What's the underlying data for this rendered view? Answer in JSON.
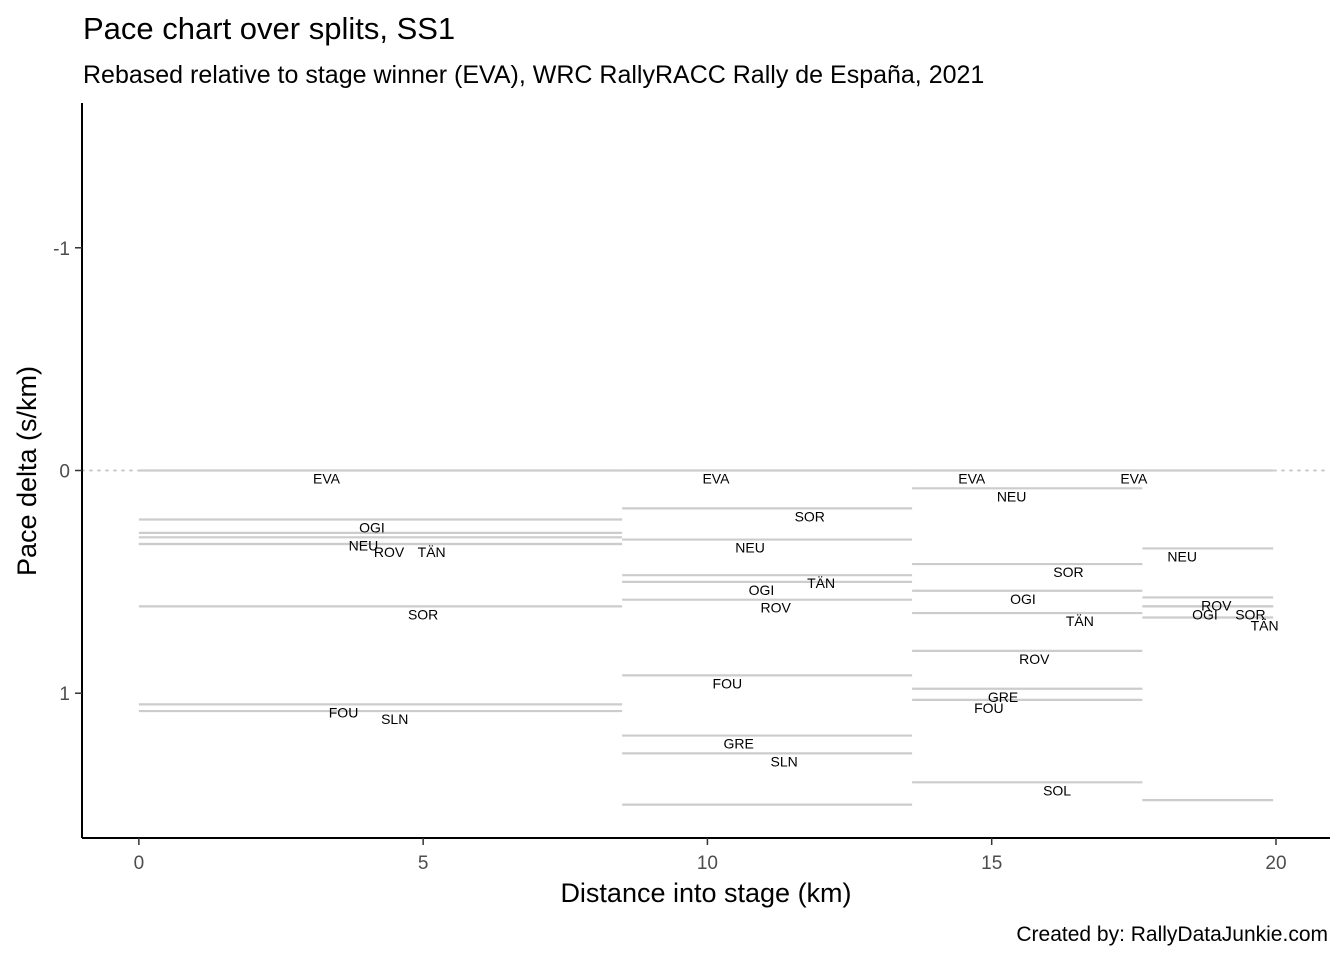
{
  "chart_data": {
    "type": "line",
    "title": "Pace chart over splits, SS1",
    "subtitle": "Rebased relative to stage winner (EVA), WRC RallyRACC Rally de España, 2021",
    "xlabel": "Distance into stage (km)",
    "ylabel": "Pace delta (s/km)",
    "caption": "Created by: RallyDataJunkie.com",
    "xlim": [
      -1,
      20.95
    ],
    "ylim": [
      -1.65,
      1.65
    ],
    "y_reversed": true,
    "x_ticks": [
      0,
      5,
      10,
      15,
      20
    ],
    "y_ticks": [
      -1,
      0,
      1
    ],
    "x_tick_labels": [
      "0",
      "5",
      "10",
      "15",
      "20"
    ],
    "y_tick_labels": [
      "-1",
      "0",
      "1"
    ],
    "reference_line": {
      "y": 0,
      "style": "dotted",
      "color": "#cccccc"
    },
    "grid": false,
    "colors": {
      "segment": "#cccccc",
      "axis": "#000000",
      "tick_label": "#4d4d4d"
    },
    "splits": [
      {
        "x_start": 0,
        "x_end": 8.5,
        "segments": [
          {
            "name": "EVA",
            "pace": 0.0,
            "label_x": 3.3
          },
          {
            "name": "OGI",
            "pace": 0.22,
            "label_x": 4.1
          },
          {
            "name": "",
            "pace": 0.28
          },
          {
            "name": "NEU",
            "pace": 0.3,
            "label_x": 3.95
          },
          {
            "name": "TÄN",
            "pace": 0.33,
            "label_x": 5.15
          },
          {
            "name": "ROV",
            "pace": 0.33,
            "label_x": 4.4
          },
          {
            "name": "SOR",
            "pace": 0.61,
            "label_x": 5.0
          },
          {
            "name": "FOU",
            "pace": 1.05,
            "label_x": 3.6
          },
          {
            "name": "SLN",
            "pace": 1.08,
            "label_x": 4.5
          }
        ]
      },
      {
        "x_start": 8.5,
        "x_end": 13.6,
        "segments": [
          {
            "name": "EVA",
            "pace": 0.0,
            "label_x": 10.15
          },
          {
            "name": "SOR",
            "pace": 0.17,
            "label_x": 11.8
          },
          {
            "name": "NEU",
            "pace": 0.31,
            "label_x": 10.75
          },
          {
            "name": "TÄN",
            "pace": 0.47,
            "label_x": 12.0
          },
          {
            "name": "OGI",
            "pace": 0.5,
            "label_x": 10.95
          },
          {
            "name": "ROV",
            "pace": 0.58,
            "label_x": 11.2
          },
          {
            "name": "FOU",
            "pace": 0.92,
            "label_x": 10.35
          },
          {
            "name": "GRE",
            "pace": 1.19,
            "label_x": 10.55
          },
          {
            "name": "SLN",
            "pace": 1.27,
            "label_x": 11.35
          },
          {
            "name": "",
            "pace": 1.5
          }
        ]
      },
      {
        "x_start": 13.6,
        "x_end": 17.65,
        "segments": [
          {
            "name": "EVA",
            "pace": 0.0,
            "label_x": 14.65
          },
          {
            "name": "NEU",
            "pace": 0.08,
            "label_x": 15.35
          },
          {
            "name": "SOR",
            "pace": 0.42,
            "label_x": 16.35
          },
          {
            "name": "OGI",
            "pace": 0.54,
            "label_x": 15.55
          },
          {
            "name": "TÄN",
            "pace": 0.64,
            "label_x": 16.55
          },
          {
            "name": "ROV",
            "pace": 0.81,
            "label_x": 15.75
          },
          {
            "name": "GRE",
            "pace": 0.98,
            "label_x": 15.2
          },
          {
            "name": "FOU",
            "pace": 1.03,
            "label_x": 14.95
          },
          {
            "name": "SOL",
            "pace": 1.4,
            "label_x": 16.15
          }
        ]
      },
      {
        "x_start": 17.65,
        "x_end": 19.95,
        "segments": [
          {
            "name": "EVA",
            "pace": 0.0,
            "label_x": 17.5
          },
          {
            "name": "NEU",
            "pace": 0.35,
            "label_x": 18.35
          },
          {
            "name": "ROV",
            "pace": 0.57,
            "label_x": 18.95
          },
          {
            "name": "OGI",
            "pace": 0.61,
            "label_x": 18.75
          },
          {
            "name": "SOR",
            "pace": 0.61,
            "label_x": 19.55
          },
          {
            "name": "TÄN",
            "pace": 0.66,
            "label_x": 19.8
          },
          {
            "name": "",
            "pace": 1.48
          }
        ]
      }
    ]
  }
}
